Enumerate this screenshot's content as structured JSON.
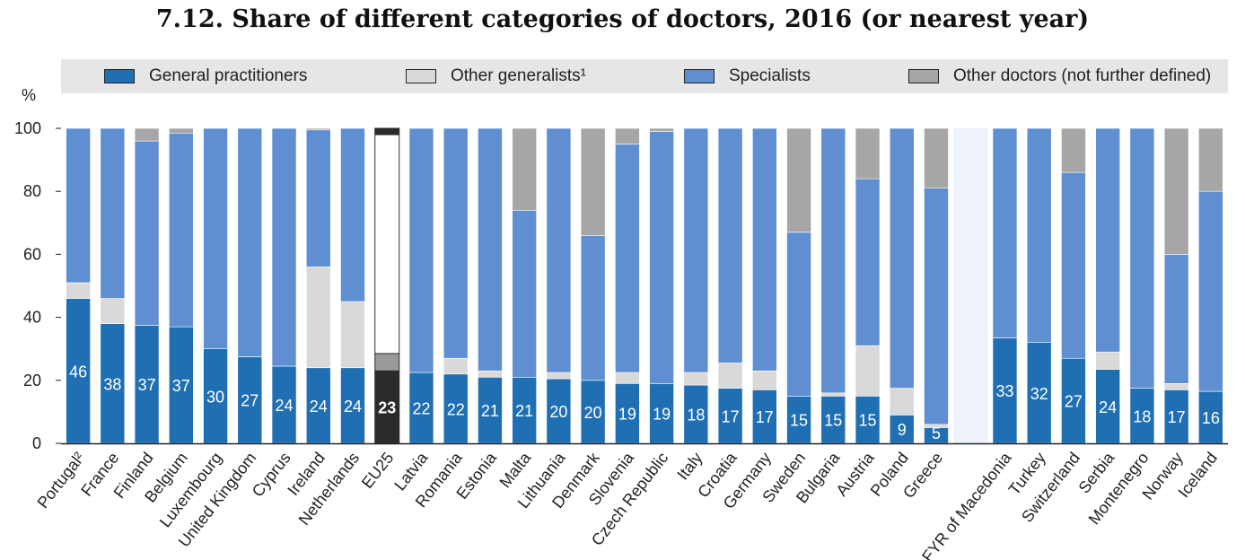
{
  "chart_data": {
    "type": "bar",
    "stacked": true,
    "title": "7.12. Share of different categories of doctors, 2016 (or nearest year)",
    "ylabel": "%",
    "ylim": [
      0,
      100
    ],
    "yticks": [
      "0",
      "20",
      "40",
      "60",
      "80",
      "100"
    ],
    "highlight_category": "EU25",
    "categories": [
      "Portugal²",
      "France",
      "Finland",
      "Belgium",
      "Luxembourg",
      "United Kingdom",
      "Cyprus",
      "Ireland",
      "Netherlands",
      "EU25",
      "Latvia",
      "Romania",
      "Estonia",
      "Malta",
      "Lithuania",
      "Denmark",
      "Slovenia",
      "Czech Republic",
      "Italy",
      "Croatia",
      "Germany",
      "Sweden",
      "Bulgaria",
      "Austria",
      "Poland",
      "Greece",
      "",
      "FYR of Macedonia",
      "Turkey",
      "Switzerland",
      "Serbia",
      "Montenegro",
      "Norway",
      "Iceland"
    ],
    "data_labels": [
      "46",
      "38",
      "37",
      "37",
      "30",
      "27",
      "24",
      "24",
      "24",
      "23",
      "22",
      "22",
      "21",
      "21",
      "20",
      "20",
      "19",
      "19",
      "18",
      "17",
      "17",
      "15",
      "15",
      "15",
      "9",
      "5",
      "",
      "33",
      "32",
      "27",
      "24",
      "18",
      "17",
      "16"
    ],
    "series": [
      {
        "name": "General practitioners",
        "color": "#1f6fb2",
        "values": [
          46,
          38,
          37.5,
          37,
          30,
          27.5,
          24.5,
          24,
          24,
          23,
          22.5,
          22,
          21,
          21,
          20.5,
          20,
          19,
          19,
          18.5,
          17.5,
          17,
          15,
          15,
          15,
          9,
          5,
          null,
          33.5,
          32,
          27,
          23.5,
          17.5,
          17,
          16.5
        ]
      },
      {
        "name": "Other generalists¹",
        "color": "#d9d9d9",
        "values": [
          5,
          8,
          0,
          0,
          0,
          0,
          0,
          32,
          21,
          5.5,
          0,
          5,
          2,
          0,
          2,
          0,
          3.5,
          0,
          4,
          8,
          6,
          0,
          1,
          16,
          8.5,
          1,
          null,
          0,
          0,
          0,
          5.5,
          0,
          2,
          0
        ]
      },
      {
        "name": "Specialists",
        "color": "#5f8fd0",
        "values": [
          49,
          54,
          58.5,
          61.5,
          70,
          72.5,
          75.5,
          43.5,
          55,
          69.5,
          77.5,
          73,
          77,
          53,
          77.5,
          46,
          72.5,
          80,
          77.5,
          74.5,
          77,
          52,
          84,
          53,
          82.5,
          75,
          null,
          66.5,
          68,
          59,
          71,
          82.5,
          41,
          63.5
        ]
      },
      {
        "name": "Other doctors (not further defined)",
        "color": "#a6a6a6",
        "values": [
          0,
          0,
          4,
          1.5,
          0,
          0,
          0,
          0.5,
          0,
          2,
          0,
          0,
          0,
          26,
          0,
          34,
          5,
          1,
          0,
          0,
          0,
          33,
          0,
          16,
          0,
          19,
          null,
          0,
          0,
          14,
          0,
          0,
          40,
          20
        ]
      }
    ]
  }
}
